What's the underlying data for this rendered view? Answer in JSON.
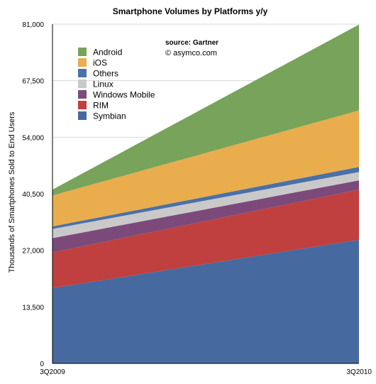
{
  "chart_data": {
    "type": "area",
    "stacked": true,
    "title": "Smartphone Volumes by Platforms y/y",
    "xlabel": "",
    "ylabel": "Thousands of Smartphones Sold to End Users",
    "categories": [
      "3Q2009",
      "3Q2010"
    ],
    "ylim": [
      0,
      81000
    ],
    "yticks": [
      0,
      13500,
      27000,
      40500,
      54000,
      67500,
      81000
    ],
    "ytick_labels": [
      "0",
      "13,500",
      "27,000",
      "40,500",
      "54,000",
      "67,500",
      "81,000"
    ],
    "grid": true,
    "legend_position": "top-left",
    "series": [
      {
        "name": "Symbian",
        "color": "#466a9f",
        "values": [
          18000,
          29500
        ]
      },
      {
        "name": "RIM",
        "color": "#c0403f",
        "values": [
          8500,
          12000
        ]
      },
      {
        "name": "Windows Mobile",
        "color": "#7c4a7a",
        "values": [
          3400,
          2200
        ]
      },
      {
        "name": "Linux",
        "color": "#c9c9c9",
        "values": [
          2200,
          2000
        ]
      },
      {
        "name": "Others",
        "color": "#4a70a8",
        "values": [
          600,
          1200
        ]
      },
      {
        "name": "iOS",
        "color": "#e9ad4d",
        "values": [
          7400,
          13500
        ]
      },
      {
        "name": "Android",
        "color": "#78a35b",
        "values": [
          1400,
          20500
        ]
      }
    ],
    "legend_order": [
      "Android",
      "iOS",
      "Others",
      "Linux",
      "Windows Mobile",
      "RIM",
      "Symbian"
    ],
    "annotations": {
      "source": "source: Gartner",
      "credit": "© asymco.com"
    }
  }
}
